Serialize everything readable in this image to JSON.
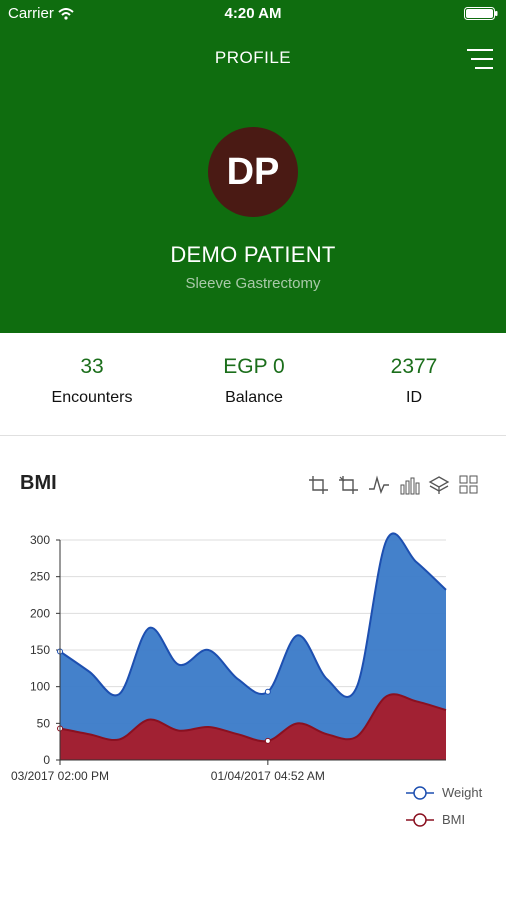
{
  "status": {
    "carrier": "Carrier",
    "time": "4:20 AM"
  },
  "topbar": {
    "title": "PROFILE"
  },
  "profile": {
    "initials": "DP",
    "name": "DEMO PATIENT",
    "procedure": "Sleeve Gastrectomy"
  },
  "stats": [
    {
      "value": "33",
      "label": "Encounters"
    },
    {
      "value": "EGP 0",
      "label": "Balance"
    },
    {
      "value": "2377",
      "label": "ID"
    }
  ],
  "chart_title": "BMI",
  "toolbox": [
    "crop-icon",
    "crop-reset-icon",
    "line-chart-icon",
    "bar-chart-icon",
    "stack-icon",
    "tiled-icon"
  ],
  "colors": {
    "header": "#0f6d0f",
    "avatar": "#4a1a14",
    "weight": "#3a7ac8",
    "bmi": "#a71b2a"
  },
  "chart_data": {
    "type": "area",
    "title": "BMI",
    "x_labels": [
      "03/2017 02:00 PM",
      "01/04/2017 04:52 AM"
    ],
    "y_ticks": [
      0,
      50,
      100,
      150,
      200,
      250,
      300
    ],
    "ylim": [
      0,
      300
    ],
    "series": [
      {
        "name": "Weight",
        "values": [
          148,
          120,
          90,
          180,
          130,
          150,
          110,
          93,
          170,
          110,
          100,
          300,
          270,
          232
        ]
      },
      {
        "name": "BMI",
        "values": [
          43,
          35,
          28,
          55,
          40,
          45,
          35,
          26,
          50,
          35,
          32,
          87,
          80,
          68
        ]
      }
    ],
    "legend": "bottom-right"
  }
}
